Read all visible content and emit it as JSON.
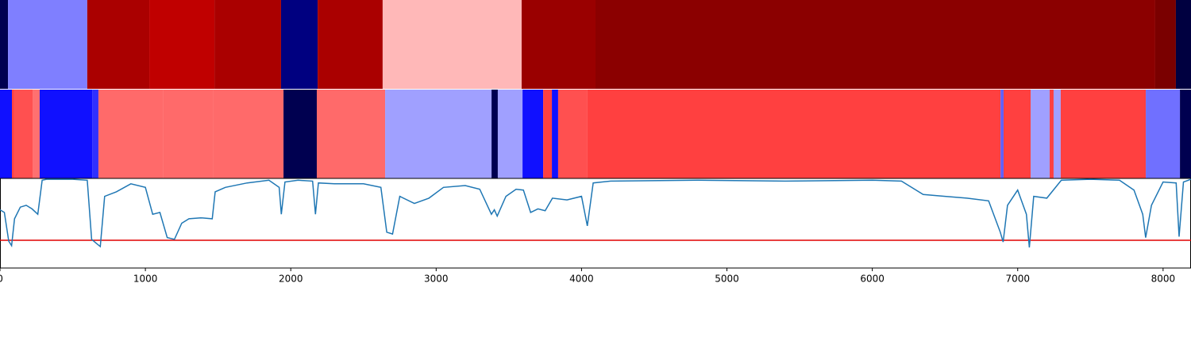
{
  "chart_data": [
    {
      "type": "band",
      "edges": [
        0,
        55,
        600,
        1027,
        1475,
        1933,
        2185,
        2632,
        3588,
        4096,
        7946,
        8088,
        8192
      ],
      "colors": [
        "#000050",
        "#7f7fff",
        "#aa0000",
        "#c00000",
        "#aa0000",
        "#000080",
        "#aa0000",
        "#ffb8b8",
        "#9a0000",
        "#8b0000",
        "#7a0000",
        "#000040"
      ],
      "xlim": [
        0,
        8192
      ]
    },
    {
      "type": "band",
      "edges": [
        0,
        82,
        98,
        224,
        273,
        634,
        677,
        1120,
        1464,
        1950,
        2179,
        2649,
        3381,
        3424,
        3594,
        3736,
        3796,
        3839,
        4041,
        6882,
        6903,
        7089,
        7220,
        7247,
        7296,
        7881,
        8116,
        8192
      ],
      "colors": [
        "#1010ff",
        "#ff4040",
        "#ff5050",
        "#ff7070",
        "#1010ff",
        "#3030ff",
        "#ff6a6a",
        "#ff6a6a",
        "#ff6a6a",
        "#000050",
        "#ff6a6a",
        "#a0a0ff",
        "#000050",
        "#a0a0ff",
        "#1010ff",
        "#ff4040",
        "#1010ff",
        "#ff5050",
        "#ff4040",
        "#6060ff",
        "#ff4040",
        "#a0a0ff",
        "#ff4040",
        "#a0a0ff",
        "#ff4040",
        "#7070ff",
        "#000050"
      ],
      "xlim": [
        0,
        8192
      ]
    },
    {
      "type": "line",
      "x": [
        0,
        30,
        60,
        80,
        100,
        140,
        180,
        220,
        260,
        290,
        320,
        400,
        500,
        600,
        630,
        660,
        690,
        720,
        800,
        900,
        1000,
        1050,
        1100,
        1150,
        1200,
        1250,
        1300,
        1380,
        1460,
        1480,
        1550,
        1700,
        1850,
        1920,
        1935,
        1960,
        2050,
        2150,
        2170,
        2190,
        2300,
        2500,
        2620,
        2660,
        2700,
        2750,
        2850,
        2950,
        3050,
        3200,
        3300,
        3380,
        3400,
        3420,
        3480,
        3550,
        3600,
        3650,
        3700,
        3750,
        3800,
        3900,
        4000,
        4040,
        4080,
        4200,
        4800,
        5400,
        6000,
        6200,
        6350,
        6500,
        6650,
        6800,
        6880,
        6900,
        6930,
        7000,
        7060,
        7080,
        7110,
        7200,
        7300,
        7500,
        7700,
        7800,
        7860,
        7880,
        7920,
        8000,
        8090,
        8110,
        8140,
        8192
      ],
      "y": [
        0.65,
        0.62,
        0.3,
        0.25,
        0.55,
        0.68,
        0.7,
        0.66,
        0.6,
        0.98,
        0.99,
        0.99,
        0.99,
        0.98,
        0.32,
        0.28,
        0.24,
        0.8,
        0.85,
        0.94,
        0.9,
        0.6,
        0.62,
        0.34,
        0.32,
        0.5,
        0.55,
        0.56,
        0.55,
        0.85,
        0.9,
        0.95,
        0.98,
        0.9,
        0.6,
        0.96,
        0.98,
        0.97,
        0.6,
        0.95,
        0.94,
        0.94,
        0.9,
        0.4,
        0.38,
        0.8,
        0.72,
        0.78,
        0.9,
        0.92,
        0.88,
        0.6,
        0.65,
        0.58,
        0.8,
        0.88,
        0.87,
        0.62,
        0.66,
        0.64,
        0.78,
        0.76,
        0.8,
        0.47,
        0.95,
        0.97,
        0.98,
        0.97,
        0.98,
        0.97,
        0.82,
        0.8,
        0.78,
        0.75,
        0.4,
        0.29,
        0.7,
        0.87,
        0.6,
        0.23,
        0.8,
        0.78,
        0.98,
        0.99,
        0.98,
        0.87,
        0.6,
        0.34,
        0.7,
        0.96,
        0.95,
        0.35,
        0.96,
        0.99
      ],
      "color": "#1f77b4",
      "threshold": 0.31,
      "threshold_color": "#e00000",
      "xlim": [
        0,
        8192
      ],
      "ylim": [
        0,
        1
      ],
      "xticks": [
        0,
        1000,
        2000,
        3000,
        4000,
        5000,
        6000,
        7000,
        8000
      ]
    }
  ]
}
